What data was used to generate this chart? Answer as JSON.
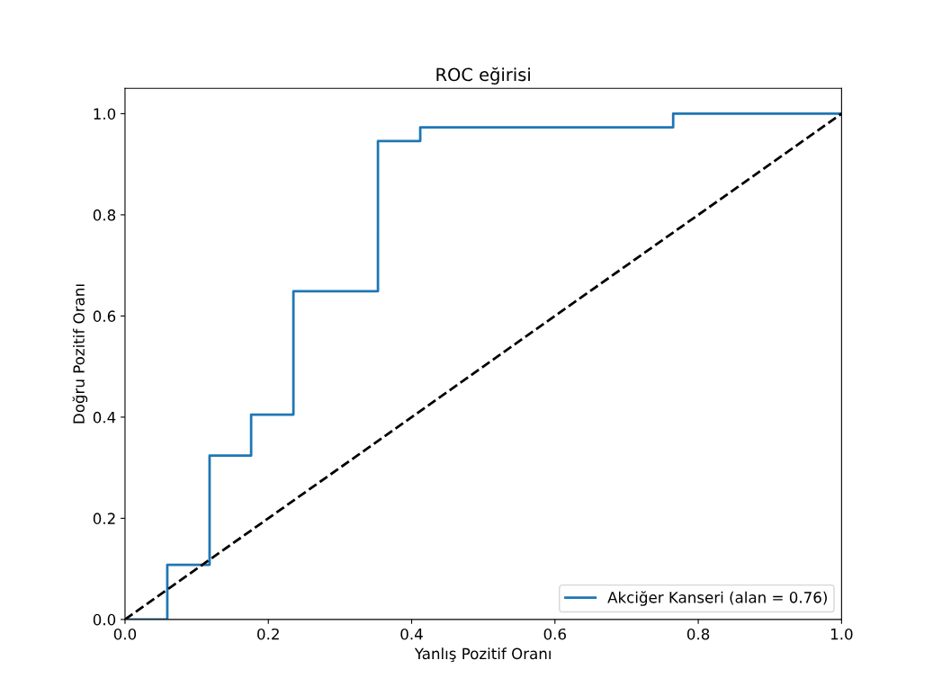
{
  "chart_data": {
    "type": "line",
    "title": "ROC eğirisi",
    "xlabel": "Yanlış Pozitif Oranı",
    "ylabel": "Doğru Pozitif Oranı",
    "series": [
      {
        "name": "Akciğer Kanseri (alan = 0.76)",
        "color": "#1f77b4",
        "line_style": "solid",
        "x": [
          0,
          0.059,
          0.059,
          0.118,
          0.118,
          0.176,
          0.176,
          0.235,
          0.235,
          0.353,
          0.353,
          0.412,
          0.412,
          0.765,
          0.765,
          1.0
        ],
        "values": [
          0,
          0,
          0.108,
          0.108,
          0.324,
          0.324,
          0.405,
          0.405,
          0.649,
          0.649,
          0.946,
          0.946,
          0.973,
          0.973,
          1.0,
          1.0
        ]
      },
      {
        "color": "#000000",
        "line_style": "dashed",
        "x": [
          0,
          1
        ],
        "values": [
          0,
          1
        ]
      }
    ],
    "xlim": [
      0,
      1
    ],
    "ylim": [
      0,
      1.05
    ],
    "xticks": [
      {
        "value": 0,
        "label": "0.0"
      },
      0.2,
      0.4,
      0.6,
      0.8,
      {
        "value": 1,
        "label": "1.0"
      }
    ],
    "yticks": [
      {
        "value": 0,
        "label": "0.0"
      },
      0.2,
      0.4,
      0.6,
      0.8,
      {
        "value": 1,
        "label": "1.0"
      }
    ],
    "legend": "bottom right",
    "grid": false
  }
}
